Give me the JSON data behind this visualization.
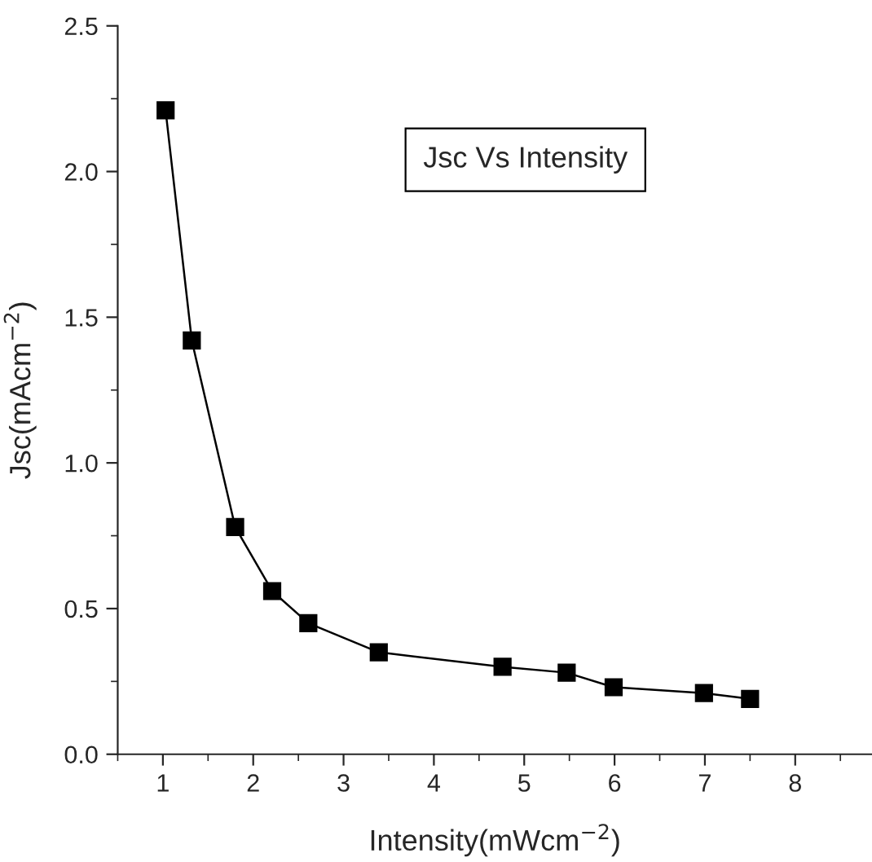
{
  "chart_data": {
    "type": "line",
    "title": "Jsc Vs Intensity",
    "xlabel": "Intensity(mWcm$^{−2}$)",
    "ylabel": "Jsc(mAcm$^{−2}$)",
    "x": [
      1.03,
      1.32,
      1.8,
      2.21,
      2.61,
      3.39,
      4.76,
      5.47,
      5.99,
      6.99,
      7.5
    ],
    "series": [
      {
        "color": "#000000",
        "values": [
          2.21,
          1.42,
          0.78,
          0.56,
          0.45,
          0.35,
          0.3,
          0.28,
          0.23,
          0.21,
          0.19
        ]
      }
    ],
    "xlim": [
      0.5,
      8.85
    ],
    "ylim": [
      0,
      2.5
    ],
    "xticks": [
      1,
      2,
      3,
      4,
      5,
      6,
      7,
      8
    ],
    "yticks": [
      {
        "value": 0,
        "label": "0.0"
      },
      {
        "value": 0.5,
        "label": "0.5"
      },
      {
        "value": 1,
        "label": "1.0"
      },
      {
        "value": 1.5,
        "label": "1.5"
      },
      {
        "value": 2,
        "label": "2.0"
      },
      {
        "value": 2.5,
        "label": "2.5"
      }
    ],
    "marker": "square",
    "line_style": "solid",
    "grid": false,
    "legend": false
  }
}
